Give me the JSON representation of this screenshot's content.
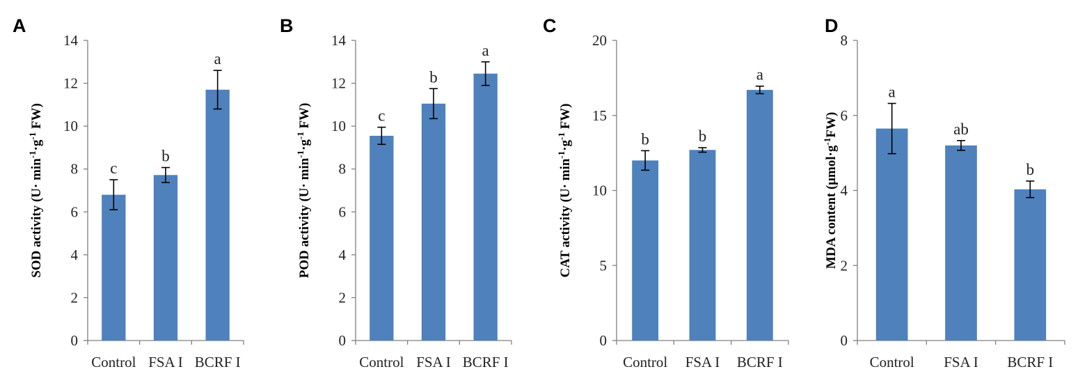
{
  "chart_data": [
    {
      "panel": "A",
      "type": "bar",
      "categories": [
        "Control",
        "FSA I",
        "BCRF I"
      ],
      "values": [
        6.8,
        7.72,
        11.7
      ],
      "errors": [
        0.7,
        0.35,
        0.9
      ],
      "letters": [
        "c",
        "b",
        "a"
      ],
      "ylabel_main": "SOD activity (U· min",
      "ylabel_parts": [
        "SOD activity (U· min",
        "-1",
        "·g",
        "-1",
        " FW)"
      ],
      "ylim": [
        0,
        14
      ],
      "yticks": [
        0,
        2,
        4,
        6,
        8,
        10,
        12,
        14
      ],
      "color": "#4f81bd"
    },
    {
      "panel": "B",
      "type": "bar",
      "categories": [
        "Control",
        "FSA I",
        "BCRF I"
      ],
      "values": [
        9.55,
        11.05,
        12.45
      ],
      "errors": [
        0.4,
        0.7,
        0.55
      ],
      "letters": [
        "c",
        "b",
        "a"
      ],
      "ylabel_parts": [
        "POD activity (U· min",
        "-1",
        "·g",
        "-1",
        " FW)"
      ],
      "ylim": [
        0,
        14
      ],
      "yticks": [
        0,
        2,
        4,
        6,
        8,
        10,
        12,
        14
      ],
      "color": "#4f81bd"
    },
    {
      "panel": "C",
      "type": "bar",
      "categories": [
        "Control",
        "FSA I",
        "BCRF I"
      ],
      "values": [
        12.0,
        12.7,
        16.7
      ],
      "errors": [
        0.65,
        0.15,
        0.25
      ],
      "letters": [
        "b",
        "b",
        "a"
      ],
      "ylabel_parts": [
        "CAT activity (U· min",
        "-1",
        "·g",
        "-1",
        " FW)"
      ],
      "ylim": [
        0,
        20
      ],
      "yticks": [
        0,
        5,
        10,
        15,
        20
      ],
      "color": "#4f81bd"
    },
    {
      "panel": "D",
      "type": "bar",
      "categories": [
        "Control",
        "FSA I",
        "BCRF I"
      ],
      "values": [
        5.65,
        5.2,
        4.03
      ],
      "errors": [
        0.67,
        0.13,
        0.22
      ],
      "letters": [
        "a",
        "ab",
        "b"
      ],
      "ylabel_parts": [
        "MDA content (μmol·g",
        "-1",
        "FW)"
      ],
      "ylim": [
        0,
        8
      ],
      "yticks": [
        0,
        2,
        4,
        6,
        8
      ],
      "color": "#4f81bd"
    }
  ]
}
